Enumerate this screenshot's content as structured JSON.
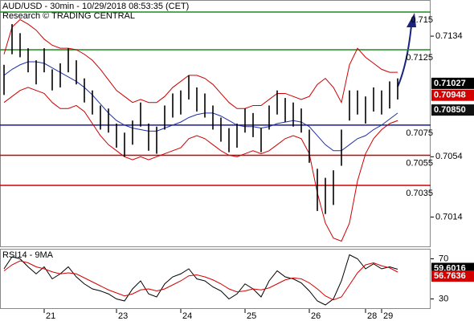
{
  "chart_data": {
    "type": "ohlc",
    "title": "AUD/USD - 30min - 10/29/2018 08:53:35 (CET)",
    "subtitle": "Research © TRADING CENTRAL",
    "categories": [
      null,
      null,
      null,
      null,
      null,
      "21",
      null,
      null,
      null,
      null,
      null,
      null,
      null,
      null,
      "23",
      null,
      null,
      null,
      null,
      null,
      null,
      null,
      "24",
      null,
      null,
      null,
      null,
      null,
      null,
      null,
      "25",
      null,
      null,
      null,
      null,
      null,
      null,
      null,
      "26",
      null,
      null,
      null,
      null,
      null,
      null,
      "28",
      null,
      "29",
      null,
      null
    ],
    "high": [
      0.7115,
      0.7142,
      0.7136,
      0.7126,
      0.7118,
      0.7126,
      0.7112,
      0.7116,
      0.7126,
      0.7118,
      0.7106,
      0.7098,
      0.7088,
      0.7086,
      0.7076,
      0.707,
      0.7078,
      0.709,
      0.7076,
      0.7074,
      0.7088,
      0.7096,
      0.7098,
      0.7108,
      0.71,
      0.7096,
      0.7088,
      0.708,
      0.7073,
      0.7076,
      0.7086,
      0.7083,
      0.7073,
      0.7088,
      0.7098,
      0.7093,
      0.709,
      0.7086,
      0.7072,
      0.7046,
      0.704,
      0.7045,
      0.7072,
      0.7098,
      0.7098,
      0.7094,
      0.71,
      0.7098,
      0.7104,
      0.7106
    ],
    "low": [
      0.7095,
      0.7122,
      0.712,
      0.711,
      0.7102,
      0.711,
      0.7098,
      0.71,
      0.711,
      0.7102,
      0.709,
      0.7082,
      0.7072,
      0.707,
      0.706,
      0.7054,
      0.7062,
      0.7074,
      0.7058,
      0.7056,
      0.7072,
      0.708,
      0.7082,
      0.7092,
      0.7084,
      0.708,
      0.7072,
      0.7064,
      0.7057,
      0.706,
      0.707,
      0.7067,
      0.7057,
      0.7072,
      0.7082,
      0.7077,
      0.7074,
      0.707,
      0.705,
      0.7018,
      0.7016,
      0.7022,
      0.7048,
      0.7078,
      0.7082,
      0.7076,
      0.7084,
      0.7082,
      0.7086,
      0.7092
    ],
    "bar_color": "#000000",
    "bands": [
      {
        "color": "#cc0000",
        "values": [
          0.7122,
          0.714,
          0.7145,
          0.7142,
          0.7138,
          0.7132,
          0.7128,
          0.7126,
          0.7126,
          0.7125,
          0.7122,
          0.7118,
          0.7112,
          0.7105,
          0.7098,
          0.7094,
          0.709,
          0.7092,
          0.709,
          0.709,
          0.7094,
          0.71,
          0.7104,
          0.7108,
          0.7108,
          0.7106,
          0.7102,
          0.7096,
          0.709,
          0.7086,
          0.7086,
          0.7088,
          0.7088,
          0.7092,
          0.7096,
          0.7096,
          0.7094,
          0.7092,
          0.7094,
          0.7102,
          0.7106,
          0.71,
          0.709,
          0.7115,
          0.7126,
          0.712,
          0.7116,
          0.7112,
          0.711,
          0.711
        ]
      },
      {
        "color": "#cc0000",
        "values": [
          0.709,
          0.7094,
          0.7098,
          0.71,
          0.7098,
          0.7096,
          0.709,
          0.7086,
          0.7086,
          0.7088,
          0.7084,
          0.7076,
          0.7068,
          0.7062,
          0.7058,
          0.7054,
          0.7052,
          0.7054,
          0.7052,
          0.7054,
          0.7056,
          0.7058,
          0.706,
          0.7066,
          0.7068,
          0.7066,
          0.7062,
          0.7058,
          0.7055,
          0.7054,
          0.7056,
          0.7058,
          0.7056,
          0.7058,
          0.7062,
          0.7066,
          0.7068,
          0.7066,
          0.7056,
          0.703,
          0.701,
          0.7,
          0.6998,
          0.701,
          0.7038,
          0.7056,
          0.7066,
          0.7072,
          0.7076,
          0.7078
        ]
      },
      {
        "color": "#1f2fa8",
        "values": [
          0.7108,
          0.7112,
          0.7115,
          0.7117,
          0.7117,
          0.7116,
          0.7113,
          0.711,
          0.7107,
          0.7104,
          0.71,
          0.7095,
          0.7089,
          0.7083,
          0.7078,
          0.7075,
          0.7073,
          0.7072,
          0.7071,
          0.7071,
          0.7073,
          0.7075,
          0.7077,
          0.708,
          0.7082,
          0.7083,
          0.7083,
          0.7081,
          0.7078,
          0.7075,
          0.7074,
          0.7074,
          0.7073,
          0.7074,
          0.7076,
          0.7077,
          0.7078,
          0.7077,
          0.7074,
          0.7068,
          0.7062,
          0.7058,
          0.7058,
          0.7062,
          0.7066,
          0.7068,
          0.7072,
          0.7075,
          0.7079,
          0.7083
        ]
      }
    ],
    "levels": [
      {
        "value": 0.715,
        "color": "#1e8c1e"
      },
      {
        "value": 0.7125,
        "color": "#1e8c1e"
      },
      {
        "value": 0.7075,
        "color": "#1a1a9c"
      },
      {
        "value": 0.7055,
        "color": "#d40000"
      },
      {
        "value": 0.7035,
        "color": "#d40000"
      }
    ],
    "ylim": [
      0.6994,
      0.7158
    ],
    "yticks": [
      0.7134,
      0.7054,
      0.7014
    ],
    "price_labels": [
      {
        "value": 0.71027,
        "label": "0.71027",
        "color": "#000000"
      },
      {
        "value": 0.70948,
        "label": "0.70948",
        "color": "#d40000"
      },
      {
        "value": 0.7085,
        "label": "0.70850",
        "color": "#111111"
      }
    ],
    "rsi": {
      "title": "RSI14 - 9MA",
      "ylim": [
        20,
        80
      ],
      "yticks": [
        70,
        30
      ],
      "series": [
        {
          "color": "#000000",
          "values": [
            60,
            72,
            70,
            62,
            55,
            62,
            50,
            55,
            62,
            52,
            45,
            40,
            38,
            35,
            30,
            28,
            40,
            48,
            35,
            32,
            45,
            52,
            55,
            60,
            50,
            48,
            42,
            38,
            30,
            35,
            45,
            40,
            32,
            48,
            58,
            52,
            50,
            46,
            38,
            28,
            24,
            30,
            48,
            74,
            70,
            60,
            65,
            60,
            62,
            59.6
          ]
        },
        {
          "color": "#d40000",
          "values": [
            58,
            64,
            68,
            66,
            62,
            60,
            57,
            55,
            56,
            55,
            51,
            47,
            43,
            39,
            36,
            33,
            35,
            39,
            40,
            38,
            40,
            44,
            48,
            53,
            54,
            52,
            49,
            45,
            40,
            37,
            38,
            40,
            39,
            41,
            45,
            49,
            51,
            50,
            46,
            40,
            33,
            29,
            32,
            44,
            56,
            64,
            66,
            63,
            61,
            56.8
          ]
        }
      ],
      "labels": [
        {
          "value": 59.6016,
          "color": "#000000"
        },
        {
          "value": 56.7636,
          "color": "#d40000"
        }
      ]
    }
  }
}
